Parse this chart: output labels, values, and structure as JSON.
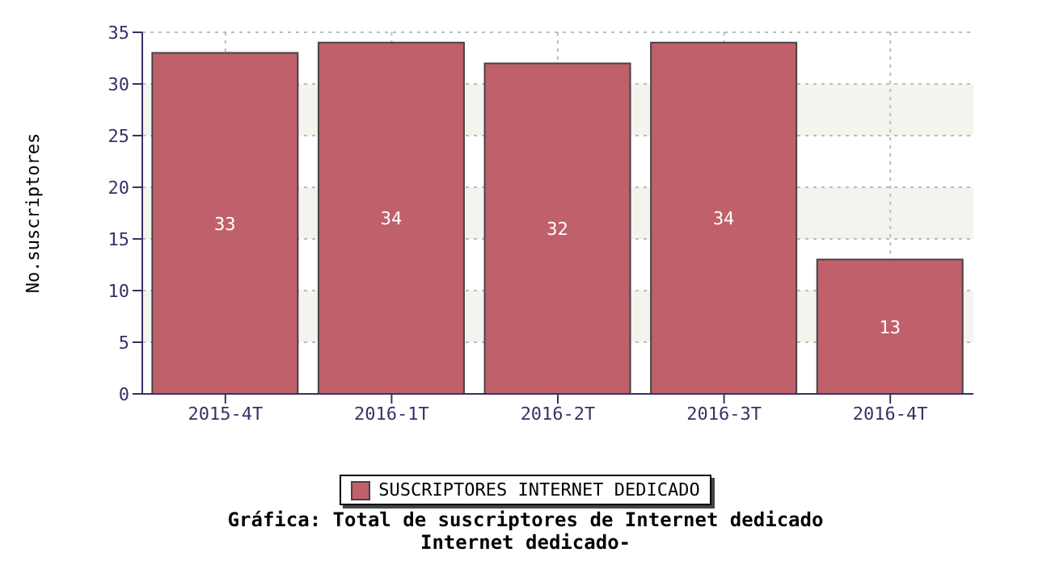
{
  "chart_data": {
    "type": "bar",
    "title": "Gráfica: Total de suscriptores de Internet dedicado",
    "subtitle": "Internet dedicado-",
    "ylabel": "No.suscriptores",
    "categories": [
      "2015-4T",
      "2016-1T",
      "2016-2T",
      "2016-3T",
      "2016-4T"
    ],
    "series": [
      {
        "name": "SUSCRIPTORES INTERNET DEDICADO",
        "color": "#c0606a",
        "values": [
          33,
          34,
          32,
          34,
          13
        ]
      }
    ],
    "ylim": [
      0,
      35
    ],
    "yticks": [
      0,
      5,
      10,
      15,
      20,
      25,
      30,
      35
    ],
    "grid": true,
    "legend": "bottom",
    "data_labels": true
  }
}
